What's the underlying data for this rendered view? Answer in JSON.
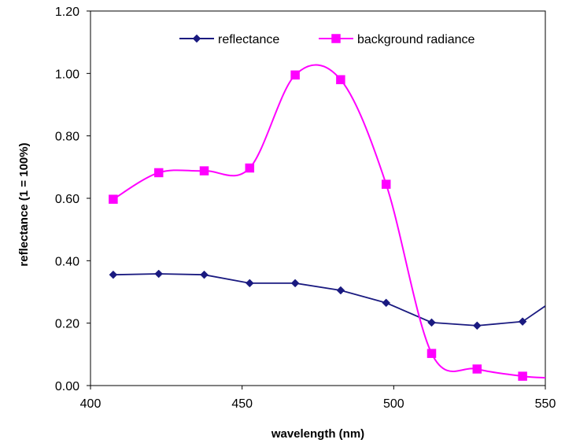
{
  "chart_data": {
    "type": "line",
    "xlabel": "wavelength (nm)",
    "ylabel": "reflectance (1 = 100%)",
    "xlim": [
      400,
      550
    ],
    "ylim": [
      0,
      1.2
    ],
    "xticks": [
      "400",
      "450",
      "500",
      "550"
    ],
    "yticks": [
      "0.00",
      "0.20",
      "0.40",
      "0.60",
      "0.80",
      "1.00",
      "1.20"
    ],
    "grid": false,
    "legend_position": "top-right",
    "series": [
      {
        "name": "reflectance",
        "color": "#1a1a80",
        "marker": "diamond",
        "smooth": false,
        "x": [
          407.5,
          422.5,
          437.5,
          452.5,
          467.5,
          482.5,
          497.5,
          512.5,
          527.5,
          542.5,
          550
        ],
        "y": [
          0.355,
          0.358,
          0.355,
          0.328,
          0.328,
          0.305,
          0.265,
          0.202,
          0.192,
          0.205,
          0.255
        ],
        "marked": [
          true,
          true,
          true,
          true,
          true,
          true,
          true,
          true,
          true,
          true,
          false
        ]
      },
      {
        "name": "background radiance",
        "color": "#ff00ff",
        "marker": "square",
        "smooth": true,
        "x": [
          407.5,
          422.5,
          437.5,
          452.5,
          467.5,
          482.5,
          497.5,
          512.5,
          527.5,
          542.5,
          550
        ],
        "y": [
          0.597,
          0.682,
          0.688,
          0.697,
          0.995,
          0.98,
          0.645,
          0.103,
          0.053,
          0.03,
          0.025
        ],
        "marked": [
          true,
          true,
          true,
          true,
          true,
          true,
          true,
          true,
          true,
          true,
          false
        ]
      }
    ]
  }
}
